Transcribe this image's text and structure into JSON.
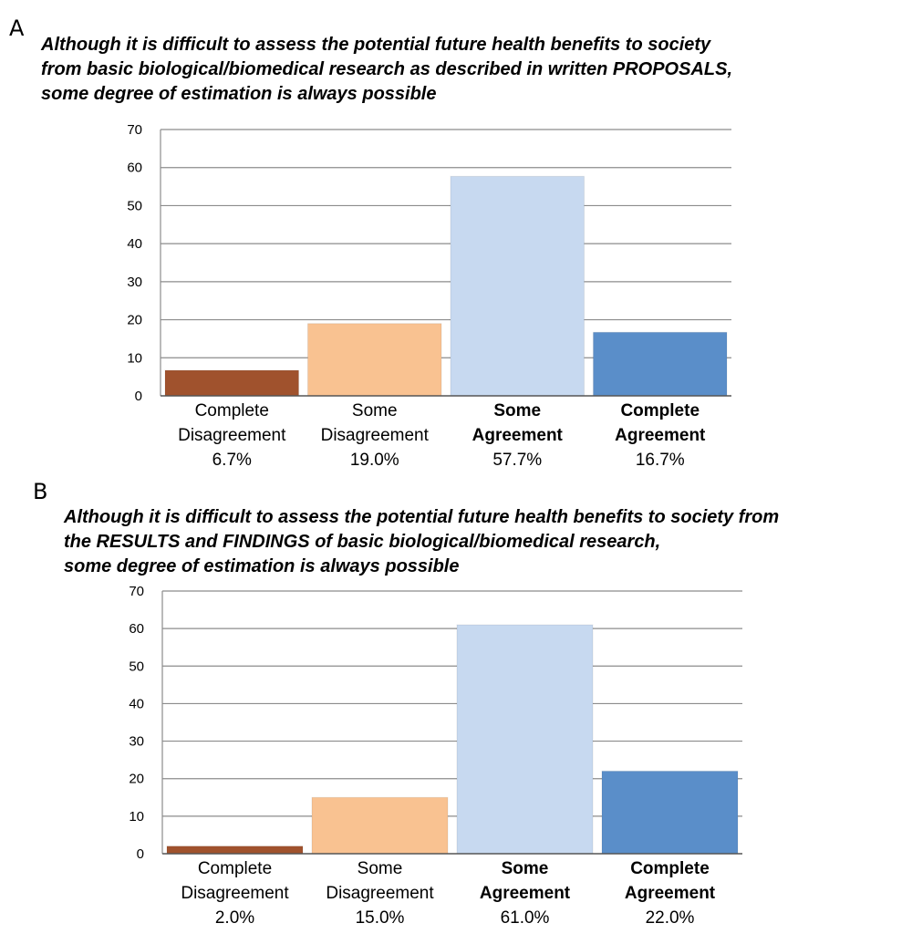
{
  "panels": [
    {
      "letter": "A",
      "title_lines": [
        "Although it is difficult to assess the potential future health benefits to society",
        "from basic biological/biomedical research as described in written PROPOSALS,",
        "some degree of estimation is always possible"
      ]
    },
    {
      "letter": "B",
      "title_lines": [
        "Although it is difficult to assess the potential future health benefits to society from",
        "the RESULTS and FINDINGS of basic biological/biomedical research,",
        "some degree of estimation is always possible"
      ]
    }
  ],
  "chart_data": [
    {
      "type": "bar",
      "title": "Although it is difficult to assess the potential future health benefits to society from basic biological/biomedical research as described in written PROPOSALS, some degree of estimation is always possible",
      "categories": [
        "Complete Disagreement",
        "Some Disagreement",
        "Some Agreement",
        "Complete Agreement"
      ],
      "category_label_lines": [
        [
          "Complete",
          "Disagreement"
        ],
        [
          "Some",
          "Disagreement"
        ],
        [
          "Some",
          "Agreement"
        ],
        [
          "Complete",
          "Agreement"
        ]
      ],
      "category_bold": [
        false,
        false,
        true,
        true
      ],
      "values": [
        6.7,
        19.0,
        57.7,
        16.7
      ],
      "value_labels": [
        "6.7%",
        "19.0%",
        "57.7%",
        "16.7%"
      ],
      "colors": [
        "#a0522d",
        "#f9c291",
        "#c7d9f0",
        "#5a8ec9"
      ],
      "ylim": [
        0,
        70
      ],
      "yticks": [
        0,
        10,
        20,
        30,
        40,
        50,
        60,
        70
      ],
      "grid": true,
      "legend": false
    },
    {
      "type": "bar",
      "title": "Although it is difficult to assess the potential future health benefits to society from the RESULTS and FINDINGS of basic biological/biomedical research, some degree of estimation is always possible",
      "categories": [
        "Complete Disagreement",
        "Some Disagreement",
        "Some Agreement",
        "Complete Agreement"
      ],
      "category_label_lines": [
        [
          "Complete",
          "Disagreement"
        ],
        [
          "Some",
          "Disagreement"
        ],
        [
          "Some",
          "Agreement"
        ],
        [
          "Complete",
          "Agreement"
        ]
      ],
      "category_bold": [
        false,
        false,
        true,
        true
      ],
      "values": [
        2.0,
        15.0,
        61.0,
        22.0
      ],
      "value_labels": [
        "2.0%",
        "15.0%",
        "61.0%",
        "22.0%"
      ],
      "colors": [
        "#a0522d",
        "#f9c291",
        "#c7d9f0",
        "#5a8ec9"
      ],
      "ylim": [
        0,
        70
      ],
      "yticks": [
        0,
        10,
        20,
        30,
        40,
        50,
        60,
        70
      ],
      "grid": true,
      "legend": false
    }
  ]
}
